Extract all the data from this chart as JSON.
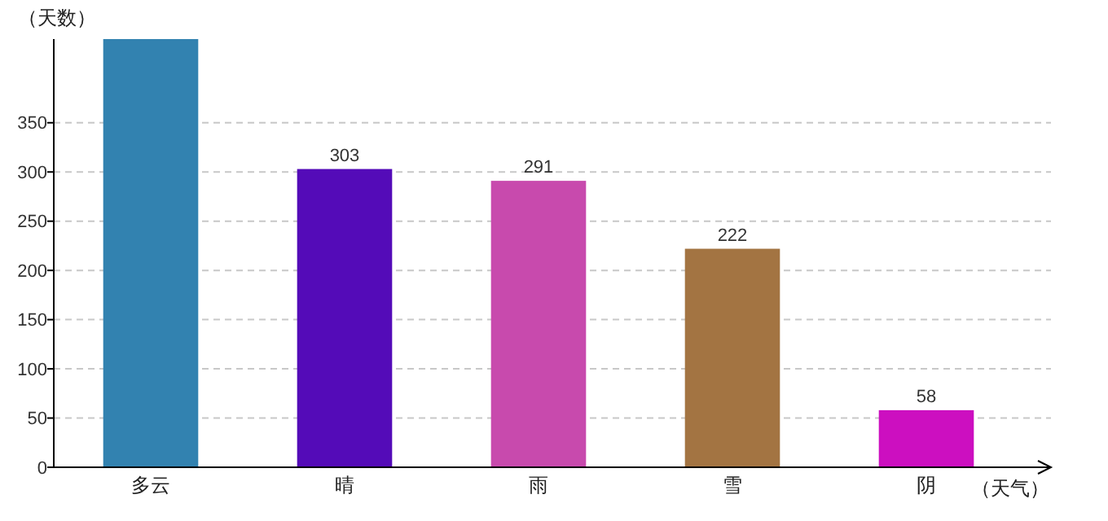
{
  "chart_data": {
    "type": "bar",
    "xlabel": "（天气）",
    "ylabel": "（天数）",
    "categories": [
      "多云",
      "晴",
      "雨",
      "雪",
      "阴"
    ],
    "values": [
      435,
      303,
      291,
      222,
      58
    ],
    "value_labels": [
      null,
      "303",
      "291",
      "222",
      "58"
    ],
    "colors": [
      "#3282b0",
      "#540bb8",
      "#c84aad",
      "#a37442",
      "#cc0fc0"
    ],
    "ylim": [
      0,
      435
    ],
    "yticks": [
      0,
      50,
      100,
      150,
      200,
      250,
      300,
      350
    ],
    "grid": "y"
  }
}
